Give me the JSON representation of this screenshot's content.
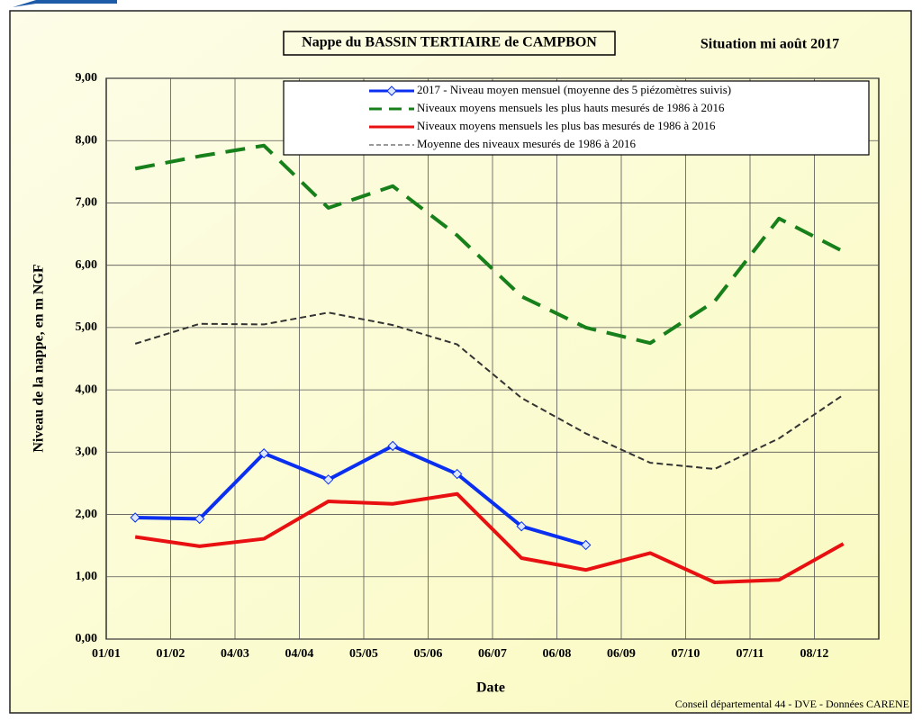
{
  "chart_data": {
    "type": "line",
    "title": "Nappe du BASSIN TERTIAIRE de CAMPBON",
    "subtitle": "Situation mi août 2017",
    "x_label": "Date",
    "y_label": "Niveau de la nappe, en m NGF",
    "footer": "Conseil départemental 44 - DVE -   Données CARENE",
    "categories": [
      "01/01",
      "01/02",
      "04/03",
      "04/04",
      "05/05",
      "05/06",
      "06/07",
      "06/08",
      "06/09",
      "07/10",
      "07/11",
      "08/12"
    ],
    "ylim": [
      0,
      9
    ],
    "yticks": [
      {
        "value": 0,
        "label": "0,00"
      },
      {
        "value": 1,
        "label": "1,00"
      },
      {
        "value": 2,
        "label": "2,00"
      },
      {
        "value": 3,
        "label": "3,00"
      },
      {
        "value": 4,
        "label": "4,00"
      },
      {
        "value": 5,
        "label": "5,00"
      },
      {
        "value": 6,
        "label": "6,00"
      },
      {
        "value": 7,
        "label": "7,00"
      },
      {
        "value": 8,
        "label": "8,00"
      },
      {
        "value": 9,
        "label": "9,00"
      }
    ],
    "grid": true,
    "legend": "top-right",
    "series": [
      {
        "name": "2017 - Niveau moyen mensuel (moyenne des 5 piézomètres suivis)",
        "color": "#0a2ff0",
        "style": "solid",
        "marker": "diamond",
        "values": [
          1.95,
          1.93,
          2.98,
          2.56,
          3.1,
          2.65,
          1.81,
          1.51,
          null,
          null,
          null,
          null
        ]
      },
      {
        "name": "Niveaux moyens mensuels les plus hauts mesurés de 1986 à 2016",
        "color": "#17801a",
        "style": "dashed",
        "values": [
          7.55,
          7.75,
          7.92,
          6.92,
          7.27,
          6.48,
          5.5,
          5.0,
          4.75,
          5.42,
          6.75,
          6.22
        ]
      },
      {
        "name": "Niveaux moyens mensuels les plus bas mesurés de 1986 à 2016",
        "color": "#e81010",
        "style": "solid",
        "values": [
          1.64,
          1.49,
          1.61,
          2.21,
          2.17,
          2.33,
          1.3,
          1.11,
          1.38,
          0.91,
          0.95,
          1.53
        ]
      },
      {
        "name": "Moyenne des niveaux mesurés de 1986 à 2016",
        "color": "#333333",
        "style": "dotted",
        "values": [
          4.74,
          5.06,
          5.05,
          5.24,
          5.04,
          4.73,
          3.87,
          3.3,
          2.83,
          2.73,
          3.22,
          3.92
        ]
      }
    ]
  }
}
